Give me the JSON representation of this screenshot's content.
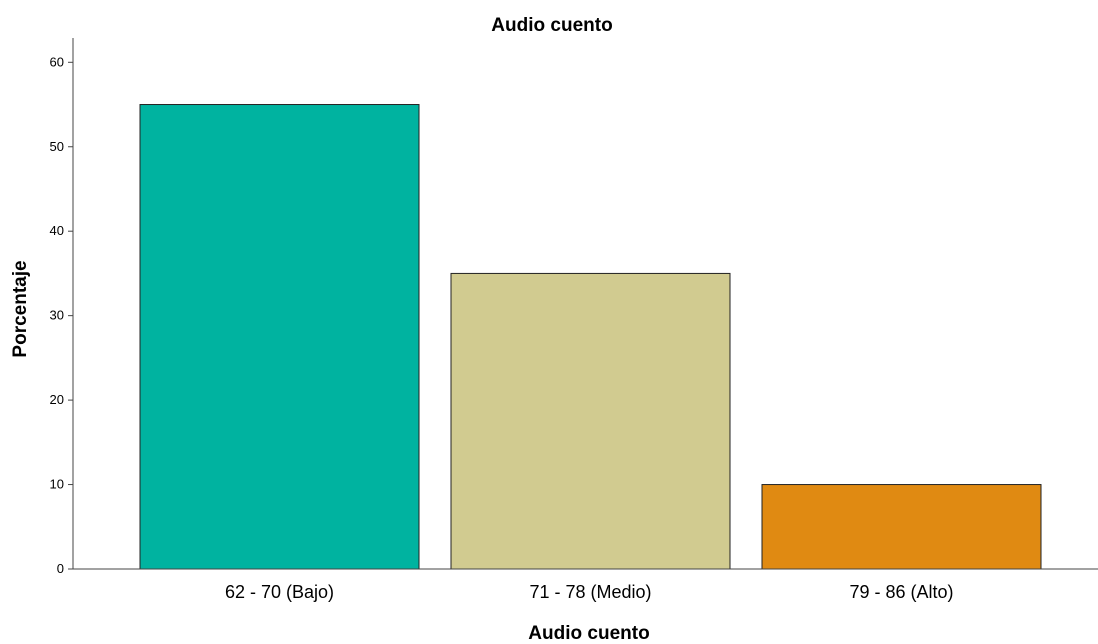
{
  "chart_data": {
    "type": "bar",
    "title": "Audio cuento",
    "xlabel": "Audio cuento",
    "ylabel": "Porcentaje",
    "categories": [
      "62 - 70 (Bajo)",
      "71 - 78 (Medio)",
      "79 - 86 (Alto)"
    ],
    "values": [
      55,
      35,
      10
    ],
    "colors": [
      "#00b3a0",
      "#d1cb90",
      "#e08a12"
    ],
    "ylim": [
      0,
      63
    ],
    "yticks": [
      0,
      10,
      20,
      30,
      40,
      50,
      60
    ],
    "ytick_labels": [
      "0",
      "10",
      "20",
      "30",
      "40",
      "50",
      "60"
    ],
    "grid": false,
    "legend": "none"
  }
}
